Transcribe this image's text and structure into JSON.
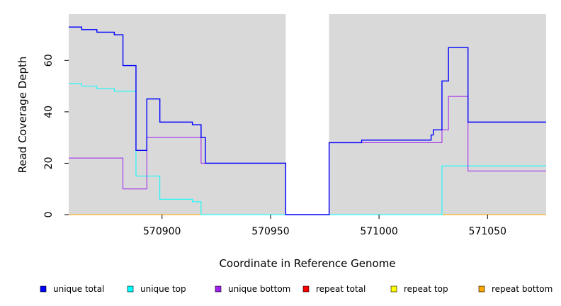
{
  "chart_data": {
    "type": "line",
    "xlabel": "Coordinate in Reference Genome",
    "ylabel": "Read Coverage Depth",
    "xlim": [
      570857,
      571077
    ],
    "ylim": [
      0,
      78
    ],
    "x_ticks": [
      570900,
      570950,
      571000,
      571050
    ],
    "y_ticks": [
      0,
      20,
      40,
      60
    ],
    "x_tick_labels": [
      "570900",
      "570950",
      "571000",
      "571050"
    ],
    "y_tick_labels": [
      "0",
      "20",
      "40",
      "60"
    ],
    "gap_region": [
      570957,
      570977
    ],
    "plot_background": "#d9d9d9",
    "legend_position": "bottom",
    "series": [
      {
        "name": "unique total",
        "color": "#0000ff",
        "steps": [
          [
            570857,
            73
          ],
          [
            570863,
            72
          ],
          [
            570870,
            71
          ],
          [
            570878,
            70
          ],
          [
            570882,
            58
          ],
          [
            570888,
            25
          ],
          [
            570893,
            45
          ],
          [
            570899,
            36
          ],
          [
            570914,
            35
          ],
          [
            570918,
            30
          ],
          [
            570920,
            20
          ],
          [
            570957,
            0
          ],
          [
            570977,
            28
          ],
          [
            570992,
            29
          ],
          [
            571024,
            31
          ],
          [
            571025,
            33
          ],
          [
            571029,
            52
          ],
          [
            571032,
            65
          ],
          [
            571041,
            36
          ],
          [
            571077,
            36
          ]
        ]
      },
      {
        "name": "unique top",
        "color": "#00ffff",
        "steps": [
          [
            570857,
            51
          ],
          [
            570863,
            50
          ],
          [
            570870,
            49
          ],
          [
            570878,
            48
          ],
          [
            570888,
            15
          ],
          [
            570899,
            6
          ],
          [
            570914,
            5
          ],
          [
            570918,
            0
          ],
          [
            571029,
            19
          ],
          [
            571077,
            19
          ]
        ]
      },
      {
        "name": "unique bottom",
        "color": "#a020f0",
        "steps": [
          [
            570857,
            22
          ],
          [
            570882,
            10
          ],
          [
            570893,
            30
          ],
          [
            570918,
            20
          ],
          [
            570957,
            0
          ],
          [
            570977,
            28
          ],
          [
            571029,
            33
          ],
          [
            571032,
            46
          ],
          [
            571041,
            17
          ],
          [
            571077,
            17
          ]
        ]
      },
      {
        "name": "repeat total",
        "color": "#ff0000",
        "steps": [
          [
            570857,
            0
          ],
          [
            571077,
            0
          ]
        ]
      },
      {
        "name": "repeat top",
        "color": "#ffff00",
        "steps": [
          [
            570857,
            0
          ],
          [
            571077,
            0
          ]
        ]
      },
      {
        "name": "repeat bottom",
        "color": "#ffa500",
        "steps": [
          [
            570857,
            0
          ],
          [
            571077,
            0
          ]
        ]
      }
    ]
  }
}
